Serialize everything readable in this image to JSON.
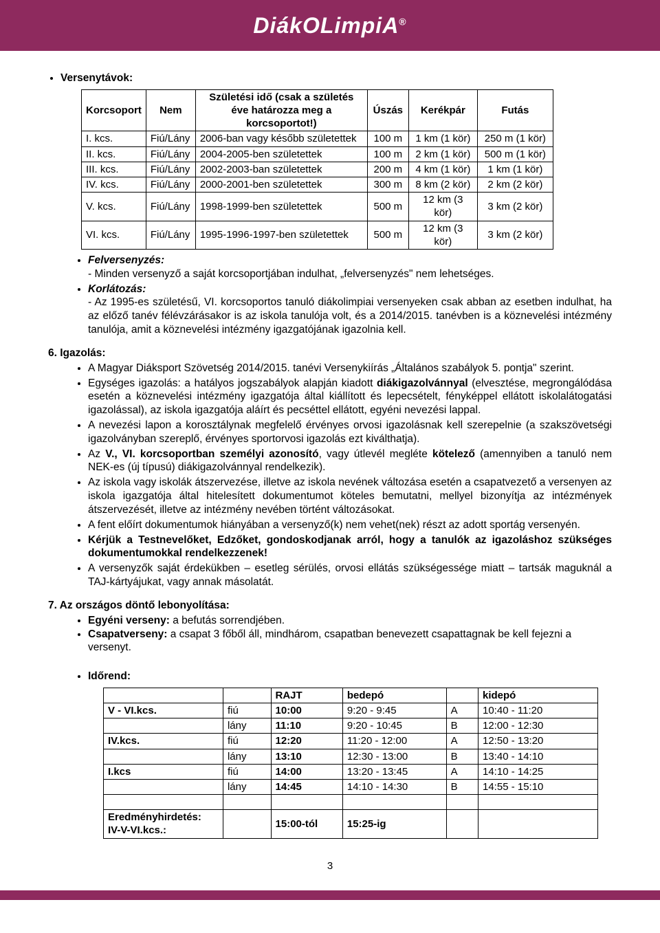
{
  "logo": "DiákOLimpiA",
  "header": {
    "title": "Versenytávok:"
  },
  "dist_table": {
    "headers": {
      "kcs": "Korcsoport",
      "nem": "Nem",
      "szul": "Születési idő (csak a születés éve határozza meg a korcsoportot!)",
      "uszas": "Úszás",
      "kerek": "Kerékpár",
      "futas": "Futás"
    },
    "rows": [
      {
        "kcs": "I. kcs.",
        "nem": "Fiú/Lány",
        "szul": "2006-ban vagy később születettek",
        "u": "100 m",
        "k": "1 km (1 kör)",
        "f": "250 m (1 kör)"
      },
      {
        "kcs": "II. kcs.",
        "nem": "Fiú/Lány",
        "szul": "2004-2005-ben születettek",
        "u": "100 m",
        "k": "2 km (1 kör)",
        "f": "500 m (1 kör)"
      },
      {
        "kcs": "III. kcs.",
        "nem": "Fiú/Lány",
        "szul": "2002-2003-ban születettek",
        "u": "200 m",
        "k": "4 km (1 kör)",
        "f": "1 km (1 kör)"
      },
      {
        "kcs": "IV. kcs.",
        "nem": "Fiú/Lány",
        "szul": "2000-2001-ben születettek",
        "u": "300 m",
        "k": "8 km (2 kör)",
        "f": "2 km (2 kör)"
      },
      {
        "kcs": "V. kcs.",
        "nem": "Fiú/Lány",
        "szul": "1998-1999-ben születettek",
        "u": "500 m",
        "k": "12 km (3 kör)",
        "f": "3 km (2 kör)"
      },
      {
        "kcs": "VI. kcs.",
        "nem": "Fiú/Lány",
        "szul": "1995-1996-1997-ben születettek",
        "u": "500 m",
        "k": "12 km (3 kör)",
        "f": "3 km (2 kör)"
      }
    ]
  },
  "felv": {
    "title": "Felversenyzés:",
    "line": "Minden versenyző a saját korcsoportjában indulhat, „felversenyzés\" nem lehetséges."
  },
  "korl": {
    "title": "Korlátozás:",
    "line": "Az 1995-es születésű, VI. korcsoportos tanuló diákolimpiai versenyeken csak abban az esetben indulhat, ha az előző tanév félévzárásakor is az iskola tanulója volt, és a 2014/2015. tanévben is a köznevelési intézmény tanulója, amit a köznevelési intézmény igazgatójának igazolnia kell."
  },
  "s6": {
    "title": "6. Igazolás:",
    "items": [
      {
        "pre": "A Magyar Diáksport Szövetség 2014/2015. tanévi Versenykiírás „Általános szabályok 5. pontja\" szerint."
      },
      {
        "pre": "Egységes igazolás: a hatályos jogszabályok alapján kiadott ",
        "b": "diákigazolvánnyal",
        "post": " (elvesztése, megrongálódása esetén a köznevelési intézmény igazgatója által kiállított és lepecsételt, fényképpel ellátott iskolalátogatási igazolással), az iskola igazgatója aláírt és pecséttel ellátott, egyéni nevezési lappal."
      },
      {
        "pre": "A nevezési lapon a korosztálynak megfelelő érvényes orvosi igazolásnak kell szerepelnie (a szakszövetségi igazolványban szereplő, érvényes sportorvosi igazolás ezt kiválthatja)."
      },
      {
        "pre": "Az ",
        "b": "V., VI. korcsoportban személyi azonosító",
        "post": ", vagy útlevél megléte ",
        "b2": "kötelező",
        "post2": " (amennyiben a tanuló nem NEK-es (új típusú) diákigazolvánnyal rendelkezik)."
      },
      {
        "pre": "Az iskola vagy iskolák átszervezése, illetve az iskola nevének változása esetén a csapatvezető a versenyen az iskola igazgatója által hitelesített dokumentumot köteles bemutatni, mellyel bizonyítja az intézmények átszervezését, illetve az intézmény nevében történt változásokat."
      },
      {
        "pre": "A fent előírt dokumentumok hiányában a versenyző(k) nem vehet(nek) részt az adott sportág versenyén."
      },
      {
        "b": "Kérjük a Testnevelőket, Edzőket, gondoskodjanak arról, hogy a tanulók az igazoláshoz szükséges dokumentumokkal rendelkezzenek!"
      },
      {
        "pre": "A versenyzők saját érdekükben – esetleg sérülés, orvosi ellátás szükségessége miatt – tartsák maguknál a TAJ-kártyájukat, vagy annak másolatát."
      }
    ]
  },
  "s7": {
    "title": "7. Az országos döntő lebonyolítása:",
    "egy_l": "Egyéni verseny:",
    "egy_t": " a befutás sorrendjében.",
    "csap_l": "Csapatverseny:",
    "csap_t": " a csapat 3 főből áll, mindhárom, csapatban benevezett csapattagnak be kell fejezni a versenyt.",
    "idorend": "Időrend:"
  },
  "sched": {
    "headers": {
      "rajt": "RAJT",
      "bed": "bedepó",
      "kid": "kidepó"
    },
    "rows": [
      {
        "kcs": "V - VI.kcs.",
        "nem": "fiú",
        "rajt": "10:00",
        "bed": "9:20 - 9:45",
        "ab": "A",
        "kid": "10:40 - 11:20"
      },
      {
        "kcs": "",
        "nem": "lány",
        "rajt": "11:10",
        "bed": "9:20 - 10:45",
        "ab": "B",
        "kid": "12:00 - 12:30"
      },
      {
        "kcs": "IV.kcs.",
        "nem": "fiú",
        "rajt": "12:20",
        "bed": "11:20 - 12:00",
        "ab": "A",
        "kid": "12:50 - 13:20"
      },
      {
        "kcs": "",
        "nem": "lány",
        "rajt": "13:10",
        "bed": "12:30 - 13:00",
        "ab": "B",
        "kid": "13:40 - 14:10"
      },
      {
        "kcs": "I.kcs",
        "nem": "fiú",
        "rajt": "14:00",
        "bed": "13:20 - 13:45",
        "ab": "A",
        "kid": "14:10 - 14:25"
      },
      {
        "kcs": "",
        "nem": "lány",
        "rajt": "14:45",
        "bed": "14:10 - 14:30",
        "ab": "B",
        "kid": "14:55 - 15:10"
      }
    ],
    "result": {
      "label": "Eredményhirdetés:",
      "sub": "IV-V-VI.kcs.:",
      "t1": "15:00-tól",
      "t2": "15:25-ig"
    }
  },
  "page_num": "3",
  "colors": {
    "brand": "#8e2a5e"
  }
}
